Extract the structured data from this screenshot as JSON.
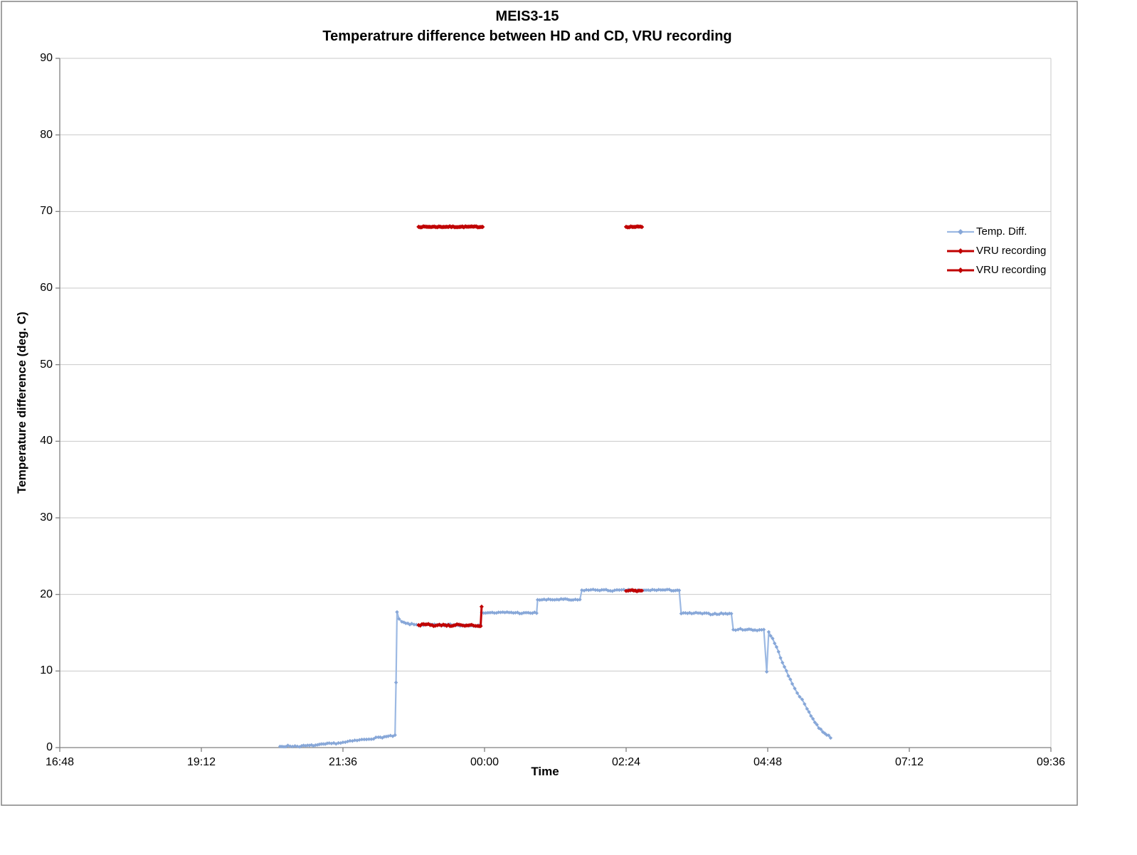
{
  "title": {
    "line1": "MEIS3-15",
    "line2": "Temperatrure difference between HD and CD, VRU recording"
  },
  "legend": {
    "items": [
      {
        "label": "Temp. Diff.",
        "color": "#9CB9E3",
        "marker_color": "#87A7D8"
      },
      {
        "label": "VRU recording",
        "color": "#C00000",
        "marker_color": "#C00000"
      },
      {
        "label": "VRU recording",
        "color": "#C00000",
        "marker_color": "#C00000"
      }
    ]
  },
  "colors": {
    "temp_diff_line": "#9CB9E3",
    "temp_diff_marker": "#87A7D8",
    "vru": "#C00000",
    "gridline": "#C9C9C9",
    "axis": "#808080",
    "chart_border": "#848484",
    "text": "#000000"
  },
  "chart_data": {
    "type": "line",
    "title": "MEIS3-15",
    "subtitle": "Temperatrure difference between HD and CD, VRU recording",
    "xlabel": "Time",
    "ylabel": "Temperature difference (deg. C)",
    "xlim": [
      "16:48",
      "09:36"
    ],
    "ylim": [
      0,
      90
    ],
    "x_ticks": [
      "16:48",
      "19:12",
      "21:36",
      "00:00",
      "02:24",
      "04:48",
      "07:12",
      "09:36"
    ],
    "y_ticks": [
      0,
      10,
      20,
      30,
      40,
      50,
      60,
      70,
      80,
      90
    ],
    "grid": "horizontal",
    "legend_position": "right",
    "noise": {
      "seed": 7,
      "temp_amp": 0.09,
      "vru_amp": 0.09,
      "vru68_amp": 0.06
    },
    "series": [
      {
        "name": "Temp. Diff.",
        "type": "line_with_diamond_markers",
        "points": [
          [
            "20:32",
            0.15
          ],
          [
            "20:40",
            0.2
          ],
          [
            "20:52",
            0.18
          ],
          [
            "21:02",
            0.25
          ],
          [
            "21:12",
            0.35
          ],
          [
            "21:22",
            0.5
          ],
          [
            "21:36",
            0.65
          ],
          [
            "21:48",
            0.9
          ],
          [
            "22:00",
            1.1
          ],
          [
            "22:12",
            1.3
          ],
          [
            "22:22",
            1.45
          ],
          [
            "22:29",
            1.55
          ],
          [
            "22:30",
            8.5
          ],
          [
            "22:31",
            17.7
          ],
          [
            "22:33",
            16.8
          ],
          [
            "22:36",
            16.4
          ],
          [
            "22:40",
            16.2
          ],
          [
            "22:46",
            16.1
          ],
          [
            "22:53",
            16.0
          ],
          [
            "23:05",
            16.05
          ],
          [
            "23:15",
            15.95
          ],
          [
            "23:25",
            16.05
          ],
          [
            "23:35",
            15.95
          ],
          [
            "23:45",
            16.0
          ],
          [
            "23:56",
            15.9
          ],
          [
            "23:57",
            17.65
          ],
          [
            "00:10",
            17.6
          ],
          [
            "00:25",
            17.65
          ],
          [
            "00:40",
            17.55
          ],
          [
            "00:53",
            17.6
          ],
          [
            "00:54",
            19.3
          ],
          [
            "01:05",
            19.3
          ],
          [
            "01:20",
            19.35
          ],
          [
            "01:30",
            19.25
          ],
          [
            "01:37",
            19.3
          ],
          [
            "01:39",
            20.55
          ],
          [
            "01:55",
            20.6
          ],
          [
            "02:10",
            20.5
          ],
          [
            "02:24",
            20.55
          ],
          [
            "02:40",
            20.5
          ],
          [
            "02:55",
            20.6
          ],
          [
            "03:10",
            20.55
          ],
          [
            "03:18",
            20.55
          ],
          [
            "03:20",
            17.5
          ],
          [
            "03:35",
            17.55
          ],
          [
            "03:50",
            17.45
          ],
          [
            "04:05",
            17.5
          ],
          [
            "04:11",
            17.45
          ],
          [
            "04:13",
            15.4
          ],
          [
            "04:25",
            15.45
          ],
          [
            "04:35",
            15.35
          ],
          [
            "04:44",
            15.4
          ],
          [
            "04:47",
            9.9
          ],
          [
            "04:49",
            15.1
          ],
          [
            "04:53",
            14.2
          ],
          [
            "04:57",
            13.1
          ],
          [
            "05:01",
            11.8
          ],
          [
            "05:05",
            10.5
          ],
          [
            "05:09",
            9.4
          ],
          [
            "05:13",
            8.3
          ],
          [
            "05:18",
            7.2
          ],
          [
            "05:23",
            6.2
          ],
          [
            "05:28",
            5.1
          ],
          [
            "05:32",
            4.2
          ],
          [
            "05:36",
            3.3
          ],
          [
            "05:40",
            2.6
          ],
          [
            "05:44",
            2.1
          ],
          [
            "05:48",
            1.7
          ],
          [
            "05:52",
            1.35
          ]
        ]
      },
      {
        "name": "VRU recording",
        "type": "constant_level_segments",
        "level": 68,
        "segments": [
          [
            "22:53",
            "23:58"
          ],
          [
            "02:24",
            "02:40"
          ]
        ]
      },
      {
        "name": "VRU recording",
        "type": "overlay_segments_on_temp_diff",
        "segments": [
          [
            [
              "22:53",
              16.0
            ],
            [
              "23:03",
              16.1
            ],
            [
              "23:10",
              15.9
            ],
            [
              "23:18",
              16.05
            ],
            [
              "23:25",
              15.9
            ],
            [
              "23:32",
              16.05
            ],
            [
              "23:40",
              15.85
            ],
            [
              "23:47",
              16.0
            ],
            [
              "23:53",
              15.85
            ],
            [
              "23:56",
              15.9
            ],
            [
              "23:57",
              18.4
            ]
          ],
          [
            [
              "02:24",
              20.45
            ],
            [
              "02:30",
              20.55
            ],
            [
              "02:35",
              20.45
            ],
            [
              "02:40",
              20.5
            ]
          ]
        ]
      }
    ]
  }
}
